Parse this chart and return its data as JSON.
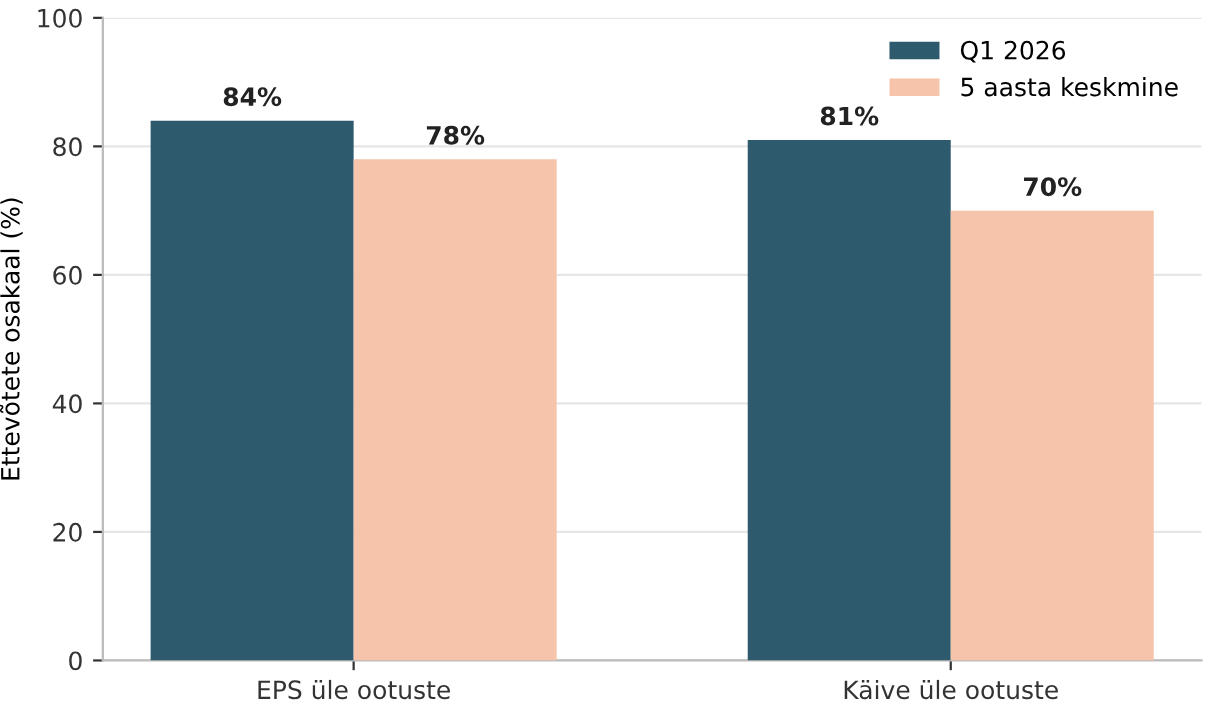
{
  "chart_data": {
    "type": "bar",
    "ylabel": "Ettevõtete osakaal (%)",
    "categories": [
      "EPS üle ootuste",
      "Käive üle ootuste"
    ],
    "series": [
      {
        "name": "Q1 2026",
        "color": "#2e5a6e",
        "values": [
          84,
          81
        ],
        "value_labels": [
          "84%",
          "81%"
        ]
      },
      {
        "name": "5 aasta keskmine",
        "color": "#f5c4aa",
        "values": [
          78,
          70
        ],
        "value_labels": [
          "78%",
          "70%"
        ]
      }
    ],
    "ylim": [
      0,
      100
    ],
    "yticks": [
      0,
      20,
      40,
      60,
      80,
      100
    ],
    "grid": "y",
    "legend": "top right"
  }
}
